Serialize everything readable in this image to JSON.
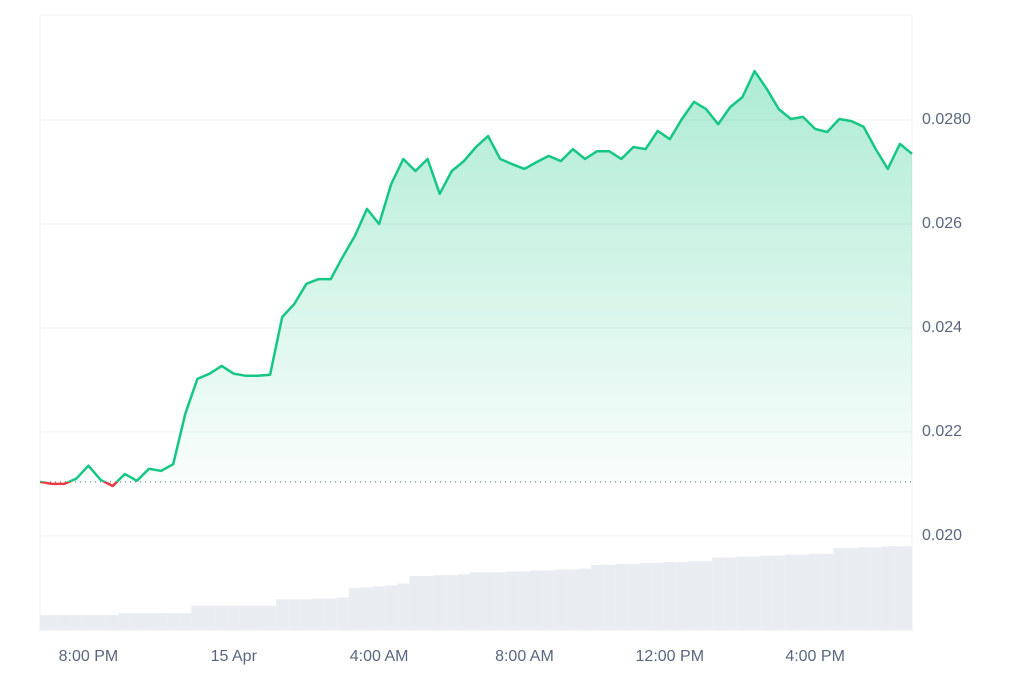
{
  "chart_data": {
    "type": "line",
    "categories": [
      null,
      null,
      null,
      null,
      "8:00 PM",
      null,
      null,
      null,
      null,
      null,
      null,
      null,
      null,
      null,
      null,
      null,
      "15 Apr",
      null,
      null,
      null,
      null,
      null,
      null,
      null,
      null,
      null,
      null,
      null,
      "4:00 AM",
      null,
      null,
      null,
      null,
      null,
      null,
      null,
      null,
      null,
      null,
      null,
      "8:00 AM",
      null,
      null,
      null,
      null,
      null,
      null,
      null,
      null,
      null,
      null,
      null,
      "12:00 PM",
      null,
      null,
      null,
      null,
      null,
      null,
      null,
      null,
      null,
      null,
      null,
      "4:00 PM",
      null,
      null,
      null,
      null,
      null,
      null,
      null,
      null
    ],
    "series": [
      {
        "color": "#16c784",
        "down_color": "#ea3943",
        "values": [
          0.02104,
          0.021,
          0.021,
          0.0211,
          0.02135,
          0.02108,
          0.02096,
          0.02119,
          0.02106,
          0.02129,
          0.02125,
          0.02138,
          0.02235,
          0.02302,
          0.02312,
          0.02327,
          0.02312,
          0.02308,
          0.02308,
          0.0231,
          0.02421,
          0.02446,
          0.02485,
          0.02494,
          0.02494,
          0.02537,
          0.02577,
          0.02629,
          0.026,
          0.02677,
          0.02725,
          0.02702,
          0.02725,
          0.02658,
          0.02702,
          0.02721,
          0.02748,
          0.02769,
          0.02725,
          0.02715,
          0.02706,
          0.02719,
          0.02731,
          0.02721,
          0.02744,
          0.02725,
          0.0274,
          0.0274,
          0.02725,
          0.02748,
          0.02744,
          0.02779,
          0.02763,
          0.02802,
          0.02835,
          0.02821,
          0.02792,
          0.02825,
          0.02844,
          0.02894,
          0.0286,
          0.02821,
          0.02802,
          0.02806,
          0.02783,
          0.02777,
          0.02802,
          0.02798,
          0.02787,
          0.02744,
          0.02706,
          0.02754,
          0.02735
        ]
      },
      {
        "type": "bar",
        "axis": "y2",
        "color": "#e9ecf1",
        "values": [
          16,
          16,
          16,
          16,
          16,
          16,
          16,
          18,
          18,
          18,
          18,
          18,
          18,
          26,
          26,
          26,
          26,
          26,
          26,
          26,
          33,
          33,
          33,
          34,
          34,
          35,
          45,
          46,
          47,
          48,
          50,
          58,
          58,
          59,
          59,
          60,
          62,
          62,
          62,
          63,
          63,
          64,
          64,
          65,
          65,
          66,
          70,
          70,
          71,
          71,
          72,
          72,
          73,
          73,
          74,
          74,
          78,
          78,
          79,
          79,
          80,
          80,
          81,
          81,
          82,
          82,
          88,
          88,
          89,
          89,
          90,
          90,
          90
        ]
      }
    ],
    "baseline": 0.02104,
    "ylim": [
      0.01819,
      0.03002
    ],
    "yticks": [
      {
        "value": 0.02,
        "label": "0.020"
      },
      0.022,
      0.024,
      0.026,
      {
        "value": 0.028,
        "label": "0.0280"
      }
    ],
    "y2lim": [
      0,
      100
    ],
    "grid": true
  }
}
